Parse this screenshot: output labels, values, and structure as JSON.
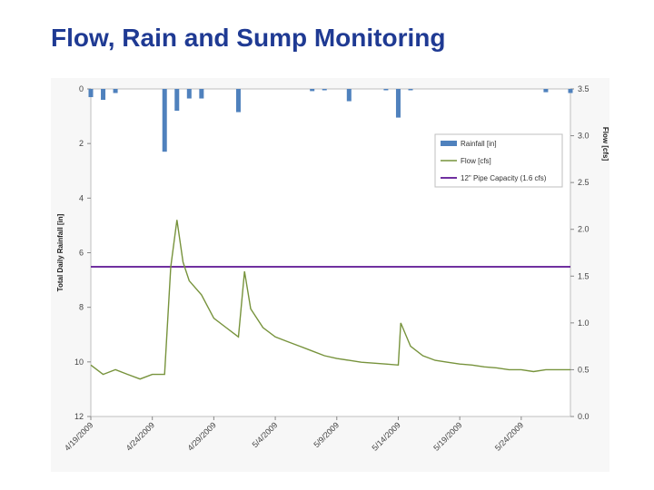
{
  "slide": {
    "title": "Flow, Rain and Sump Monitoring"
  },
  "colors": {
    "rain": "#4f81bd",
    "flow": "#77933c",
    "capacity": "#7030a0",
    "title": "#1f3a93"
  },
  "chart_data": {
    "type": "combo",
    "title": "",
    "ylabel_left": "Total Daily Rainfall [in]",
    "ylabel_right": "Flow [cfs]",
    "xlabel": "",
    "ylim_left": [
      12,
      0
    ],
    "ylim_right": [
      0,
      3.5
    ],
    "y_left_ticks": [
      "0",
      "2",
      "4",
      "6",
      "8",
      "10",
      "12"
    ],
    "y_right_ticks": [
      "0.0",
      "0.5",
      "1.0",
      "1.5",
      "2.0",
      "2.5",
      "3.0",
      "3.5"
    ],
    "x_ticks": [
      "4/19/2009",
      "4/24/2009",
      "4/29/2009",
      "5/4/2009",
      "5/9/2009",
      "5/14/2009",
      "5/19/2009",
      "5/24/2009"
    ],
    "x_range": [
      "2009-04-19",
      "2009-05-28"
    ],
    "grid": false,
    "legend_position": "top-right",
    "series": [
      {
        "name": "Rainfall [in]",
        "kind": "bar",
        "axis": "left",
        "data": [
          {
            "x": "2009-04-19",
            "y": 0.3
          },
          {
            "x": "2009-04-20",
            "y": 0.4
          },
          {
            "x": "2009-04-21",
            "y": 0.15
          },
          {
            "x": "2009-04-25",
            "y": 2.3
          },
          {
            "x": "2009-04-26",
            "y": 0.8
          },
          {
            "x": "2009-04-27",
            "y": 0.35
          },
          {
            "x": "2009-04-28",
            "y": 0.35
          },
          {
            "x": "2009-05-01",
            "y": 0.85
          },
          {
            "x": "2009-05-07",
            "y": 0.08
          },
          {
            "x": "2009-05-08",
            "y": 0.05
          },
          {
            "x": "2009-05-10",
            "y": 0.45
          },
          {
            "x": "2009-05-13",
            "y": 0.05
          },
          {
            "x": "2009-05-14",
            "y": 1.05
          },
          {
            "x": "2009-05-15",
            "y": 0.05
          },
          {
            "x": "2009-05-26",
            "y": 0.12
          },
          {
            "x": "2009-05-28",
            "y": 0.15
          }
        ]
      },
      {
        "name": "Flow [cfs]",
        "kind": "line",
        "axis": "right",
        "data": [
          {
            "x": "2009-04-19",
            "y": 0.55
          },
          {
            "x": "2009-04-20",
            "y": 0.45
          },
          {
            "x": "2009-04-21",
            "y": 0.5
          },
          {
            "x": "2009-04-22",
            "y": 0.45
          },
          {
            "x": "2009-04-23",
            "y": 0.4
          },
          {
            "x": "2009-04-24",
            "y": 0.45
          },
          {
            "x": "2009-04-25",
            "y": 0.45
          },
          {
            "x": "2009-04-25.5",
            "y": 1.6
          },
          {
            "x": "2009-04-26",
            "y": 2.1
          },
          {
            "x": "2009-04-26.5",
            "y": 1.65
          },
          {
            "x": "2009-04-27",
            "y": 1.45
          },
          {
            "x": "2009-04-28",
            "y": 1.3
          },
          {
            "x": "2009-04-29",
            "y": 1.05
          },
          {
            "x": "2009-04-30",
            "y": 0.95
          },
          {
            "x": "2009-05-01",
            "y": 0.85
          },
          {
            "x": "2009-05-01.5",
            "y": 1.55
          },
          {
            "x": "2009-05-02",
            "y": 1.15
          },
          {
            "x": "2009-05-03",
            "y": 0.95
          },
          {
            "x": "2009-05-04",
            "y": 0.85
          },
          {
            "x": "2009-05-05",
            "y": 0.8
          },
          {
            "x": "2009-05-06",
            "y": 0.75
          },
          {
            "x": "2009-05-07",
            "y": 0.7
          },
          {
            "x": "2009-05-08",
            "y": 0.65
          },
          {
            "x": "2009-05-09",
            "y": 0.62
          },
          {
            "x": "2009-05-10",
            "y": 0.6
          },
          {
            "x": "2009-05-11",
            "y": 0.58
          },
          {
            "x": "2009-05-12",
            "y": 0.57
          },
          {
            "x": "2009-05-13",
            "y": 0.56
          },
          {
            "x": "2009-05-14",
            "y": 0.55
          },
          {
            "x": "2009-05-14.2",
            "y": 1.0
          },
          {
            "x": "2009-05-15",
            "y": 0.75
          },
          {
            "x": "2009-05-16",
            "y": 0.65
          },
          {
            "x": "2009-05-17",
            "y": 0.6
          },
          {
            "x": "2009-05-18",
            "y": 0.58
          },
          {
            "x": "2009-05-19",
            "y": 0.56
          },
          {
            "x": "2009-05-20",
            "y": 0.55
          },
          {
            "x": "2009-05-21",
            "y": 0.53
          },
          {
            "x": "2009-05-22",
            "y": 0.52
          },
          {
            "x": "2009-05-23",
            "y": 0.5
          },
          {
            "x": "2009-05-24",
            "y": 0.5
          },
          {
            "x": "2009-05-25",
            "y": 0.48
          },
          {
            "x": "2009-05-26",
            "y": 0.5
          },
          {
            "x": "2009-05-27",
            "y": 0.5
          },
          {
            "x": "2009-05-28",
            "y": 0.5
          }
        ]
      },
      {
        "name": "12\" Pipe Capacity (1.6 cfs)",
        "kind": "hline",
        "axis": "right",
        "y": 1.6
      }
    ]
  }
}
